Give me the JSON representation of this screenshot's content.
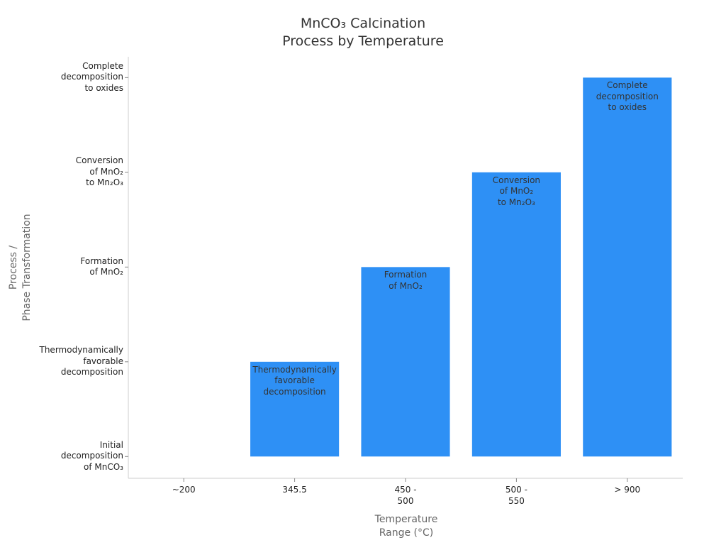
{
  "chart_data": {
    "type": "bar",
    "title": "MnCO₃ Calcination\nProcess by Temperature",
    "x_label": "Temperature\nRange (°C)",
    "y_label": "Process /\nPhase Transformation",
    "categories": [
      "~200",
      "345.5",
      "450 -\n500",
      "500 -\n550",
      "> 900"
    ],
    "values": [
      0,
      1,
      2,
      3,
      4
    ],
    "value_labels": [
      null,
      "Thermodynamically\nfavorable\ndecomposition",
      "Formation\nof MnO₂",
      "Conversion\nof MnO₂\nto Mn₂O₃",
      "Complete\ndecomposition\nto oxides"
    ],
    "color": "#2e90f5",
    "ylim": [
      -0.23,
      4.22
    ],
    "yticks": [
      {
        "value": 0,
        "label": "Initial\ndecomposition\nof MnCO₃"
      },
      {
        "value": 1,
        "label": "Thermodynamically\nfavorable\ndecomposition"
      },
      {
        "value": 2,
        "label": "Formation\nof MnO₂"
      },
      {
        "value": 3,
        "label": "Conversion\nof MnO₂\nto Mn₂O₃"
      },
      {
        "value": 4,
        "label": "Complete\ndecomposition\nto oxides"
      }
    ],
    "grid": false
  }
}
